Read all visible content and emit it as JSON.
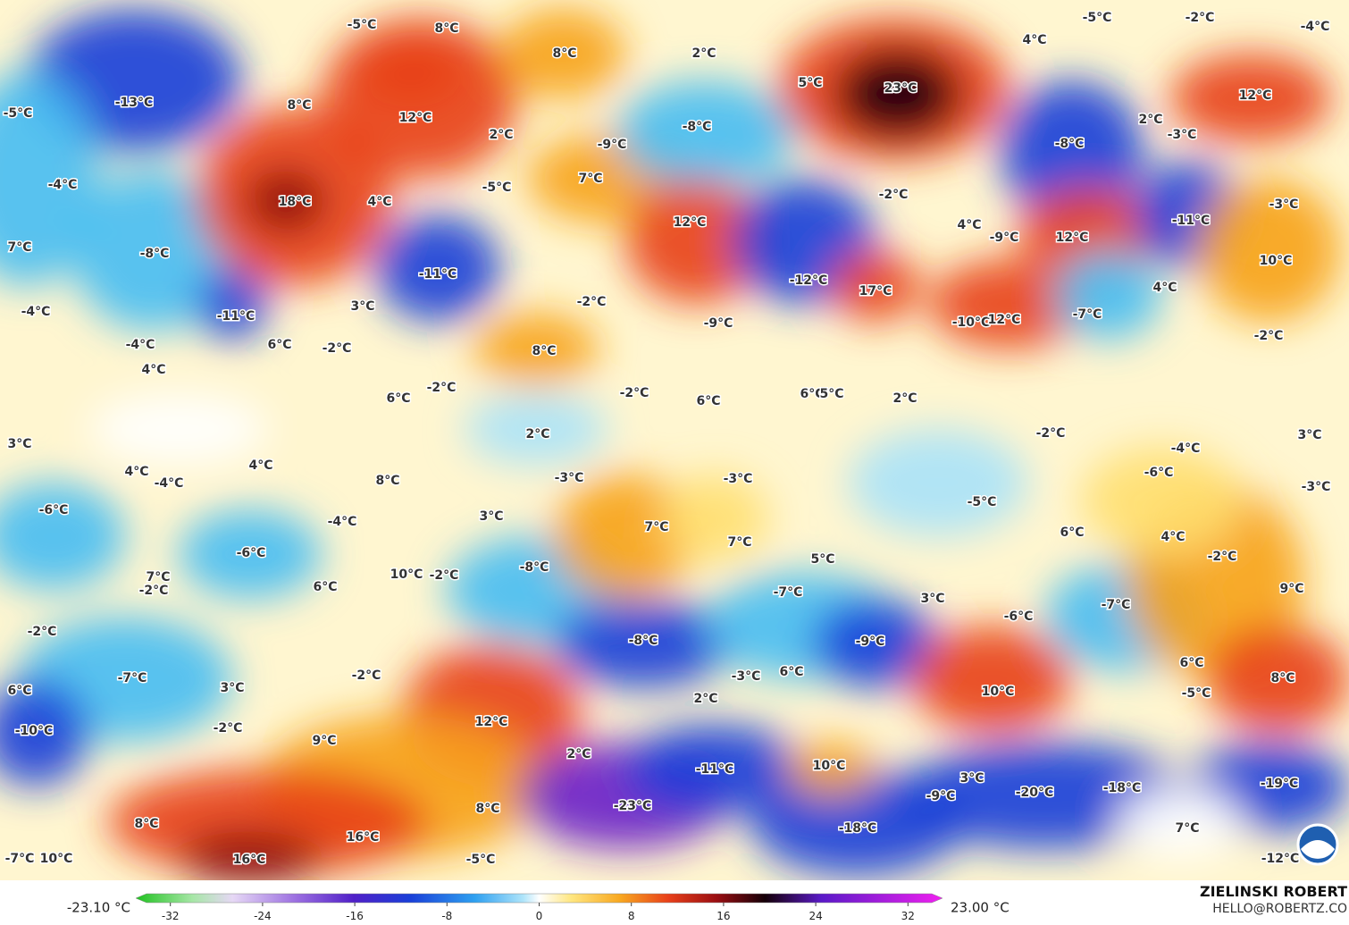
{
  "map": {
    "labels": [
      "-5°C",
      "8°C",
      "8°C",
      "2°C",
      "4°C",
      "-5°C",
      "-2°C",
      "-4°C",
      "-13°C",
      "-5°C",
      "8°C",
      "12°C",
      "2°C",
      "5°C",
      "23°C",
      "12°C",
      "2°C",
      "-8°C",
      "-9°C",
      "-8°C",
      "-3°C",
      "-4°C",
      "18°C",
      "4°C",
      "-5°C",
      "7°C",
      "-2°C",
      "-11°C",
      "-3°C",
      "7°C",
      "-8°C",
      "-11°C",
      "12°C",
      "4°C",
      "-9°C",
      "12°C",
      "10°C",
      "-4°C",
      "-11°C",
      "3°C",
      "-2°C",
      "-12°C",
      "17°C",
      "4°C",
      "-7°C",
      "-10°C",
      "12°C",
      "-9°C",
      "-2°C",
      "-4°C",
      "6°C",
      "-2°C",
      "8°C",
      "4°C",
      "-2°C",
      "-2°C",
      "6°C",
      "6°C",
      "6°C",
      "5°C",
      "2°C",
      "3°C",
      "2°C",
      "-2°C",
      "-4°C",
      "3°C",
      "4°C",
      "4°C",
      "-4°C",
      "8°C",
      "-3°C",
      "-3°C",
      "-6°C",
      "-3°C",
      "-6°C",
      "-4°C",
      "3°C",
      "7°C",
      "-5°C",
      "6°C",
      "4°C",
      "-6°C",
      "7°C",
      "5°C",
      "-8°C",
      "-2°C",
      "7°C",
      "-2°C",
      "10°C",
      "-2°C",
      "6°C",
      "-7°C",
      "3°C",
      "-6°C",
      "-7°C",
      "9°C",
      "-2°C",
      "-8°C",
      "-9°C",
      "6°C",
      "-7°C",
      "3°C",
      "-2°C",
      "-3°C",
      "6°C",
      "2°C",
      "10°C",
      "-5°C",
      "8°C",
      "6°C",
      "-10°C",
      "-2°C",
      "12°C",
      "9°C",
      "2°C",
      "-11°C",
      "10°C",
      "3°C",
      "-9°C",
      "-20°C",
      "-18°C",
      "-19°C",
      "8°C",
      "-23°C",
      "8°C",
      "16°C",
      "-18°C",
      "7°C",
      "-7°C",
      "10°C",
      "16°C",
      "-5°C",
      "-12°C"
    ]
  },
  "colorbar": {
    "min_label": "-23.10 °C",
    "max_label": "23.00 °C",
    "xlim": [
      -35,
      35
    ],
    "xticks": [
      -32,
      -24,
      -16,
      -8,
      0,
      8,
      16,
      24,
      32
    ]
  },
  "credits": {
    "author": "ZIELINSKI ROBERT",
    "email": "HELLO@ROBERTZ.CO"
  }
}
